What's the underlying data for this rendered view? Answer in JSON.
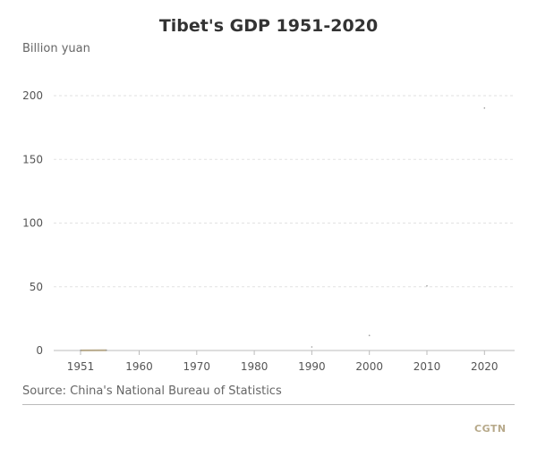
{
  "chart_data": {
    "type": "line",
    "title": "Tibet's GDP 1951-2020",
    "ylabel": "Billion yuan",
    "xlabel": "",
    "ylim": [
      0,
      200
    ],
    "yticks": [
      0,
      50,
      100,
      150,
      200
    ],
    "xticks": [
      "1951",
      "1960",
      "1970",
      "1980",
      "1990",
      "2000",
      "2010",
      "2020"
    ],
    "x": [
      1951,
      1955,
      1990,
      2000,
      2010,
      2020
    ],
    "values": [
      0.13,
      0.2,
      2.8,
      11.8,
      50.7,
      190.3
    ],
    "grid": true,
    "series_color": "#b7a98a"
  },
  "source": "Source: China's National Bureau of Statistics",
  "logo": "CGTN"
}
